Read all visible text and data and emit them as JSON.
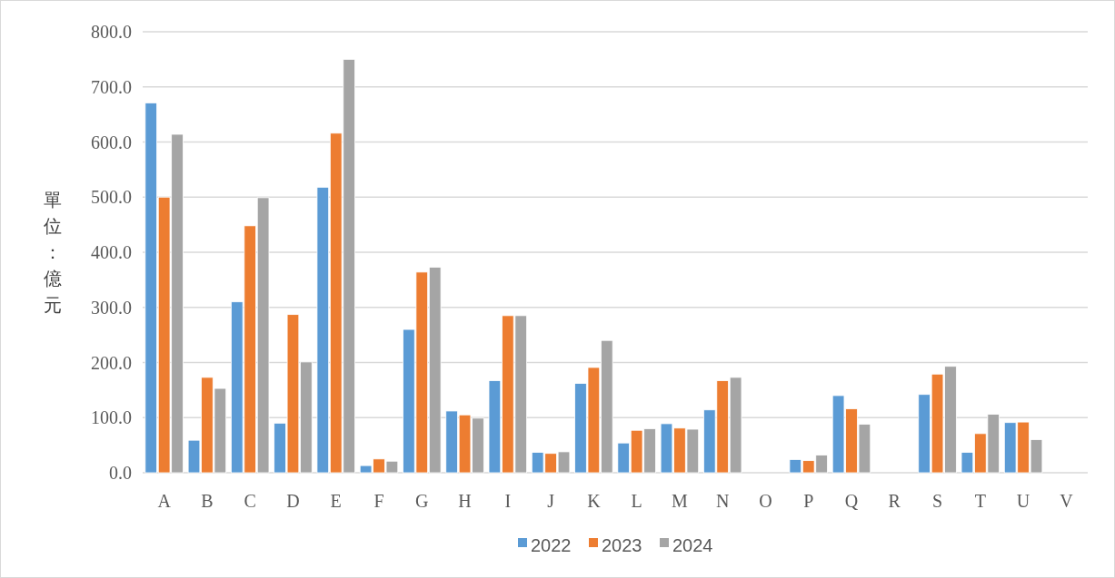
{
  "chart_data": {
    "type": "bar",
    "ylabel": "單位：億元",
    "categories": [
      "A",
      "B",
      "C",
      "D",
      "E",
      "F",
      "G",
      "H",
      "I",
      "J",
      "K",
      "L",
      "M",
      "N",
      "O",
      "P",
      "Q",
      "R",
      "S",
      "T",
      "U",
      "V"
    ],
    "series": [
      {
        "name": "2022",
        "color": "#5b9bd5",
        "values": [
          671,
          59,
          310,
          90,
          518,
          13,
          260,
          112,
          167,
          37,
          162,
          54,
          89,
          114,
          null,
          24,
          140,
          null,
          142,
          37,
          91,
          null
        ]
      },
      {
        "name": "2023",
        "color": "#ed7d31",
        "values": [
          500,
          173,
          448,
          287,
          616,
          25,
          364,
          105,
          285,
          35,
          191,
          77,
          81,
          167,
          null,
          22,
          116,
          null,
          179,
          71,
          92,
          null
        ]
      },
      {
        "name": "2024",
        "color": "#a5a5a5",
        "values": [
          614,
          153,
          499,
          201,
          750,
          21,
          373,
          99,
          285,
          38,
          240,
          80,
          79,
          173,
          null,
          32,
          88,
          null,
          193,
          106,
          60,
          null
        ]
      }
    ],
    "ylim": [
      0,
      800
    ],
    "yticks": [
      {
        "value": 0,
        "label": "0.0"
      },
      {
        "value": 100,
        "label": "100.0"
      },
      {
        "value": 200,
        "label": "200.0"
      },
      {
        "value": 300,
        "label": "300.0"
      },
      {
        "value": 400,
        "label": "400.0"
      },
      {
        "value": 500,
        "label": "500.0"
      },
      {
        "value": 600,
        "label": "600.0"
      },
      {
        "value": 700,
        "label": "700.0"
      },
      {
        "value": 800,
        "label": "800.0"
      }
    ],
    "grid": "y",
    "legend": "bottom"
  }
}
